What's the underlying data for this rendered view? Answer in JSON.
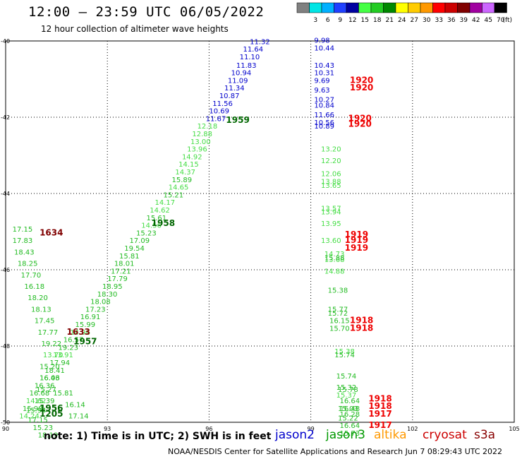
{
  "header": {
    "title": "12:00 — 23:59 UTC 06/05/2022",
    "subtitle": "12 hour collection of altimeter wave heights"
  },
  "colorbar": {
    "unit": "(ft)",
    "bins": [
      {
        "label": "",
        "color": "#808080"
      },
      {
        "label": "3",
        "color": "#00e5e5"
      },
      {
        "label": "6",
        "color": "#00b0ff"
      },
      {
        "label": "9",
        "color": "#2040ff"
      },
      {
        "label": "12",
        "color": "#0000a0"
      },
      {
        "label": "15",
        "color": "#44ff44"
      },
      {
        "label": "18",
        "color": "#22cc22"
      },
      {
        "label": "21",
        "color": "#008800"
      },
      {
        "label": "24",
        "color": "#ffff00"
      },
      {
        "label": "27",
        "color": "#ffcc00"
      },
      {
        "label": "30",
        "color": "#ff9900"
      },
      {
        "label": "33",
        "color": "#ff0000"
      },
      {
        "label": "36",
        "color": "#cc0000"
      },
      {
        "label": "39",
        "color": "#800000"
      },
      {
        "label": "42",
        "color": "#a000a0"
      },
      {
        "label": "45",
        "color": "#cc66ff"
      },
      {
        "label": "70",
        "color": "#000000"
      }
    ]
  },
  "footer": {
    "note": "note:  1) Time is in UTC; 2) SWH is in feet",
    "credit": "NOAA/NESDIS Center for Satellite Applications and Research    Jun  7 08:29:43 UTC 2022",
    "satellites": [
      {
        "name": "jason2",
        "color": "#0000cc"
      },
      {
        "name": "jason3",
        "color": "#009900"
      },
      {
        "name": "altika",
        "color": "#ff9900"
      },
      {
        "name": "cryosat",
        "color": "#cc0000"
      },
      {
        "name": "s3a",
        "color": "#880000"
      }
    ]
  },
  "chart_data": {
    "type": "scatter",
    "xlabel": "",
    "ylabel": "",
    "xlim": [
      90,
      105
    ],
    "ylim": [
      -50,
      -40
    ],
    "x_ticks": [
      90,
      93,
      96,
      99,
      102,
      105
    ],
    "y_ticks": [
      -40,
      -42,
      -44,
      -46,
      -48,
      -50
    ],
    "grid": true,
    "labels": [
      {
        "x": 97.2,
        "y": -40.08,
        "text": "11.32",
        "color": "#0000cc"
      },
      {
        "x": 97.0,
        "y": -40.28,
        "text": "11.64",
        "color": "#0000cc"
      },
      {
        "x": 96.9,
        "y": -40.48,
        "text": "11.10",
        "color": "#0000cc"
      },
      {
        "x": 96.8,
        "y": -40.7,
        "text": "11.83",
        "color": "#0000cc"
      },
      {
        "x": 96.65,
        "y": -40.9,
        "text": "10.94",
        "color": "#0000cc"
      },
      {
        "x": 96.55,
        "y": -41.1,
        "text": "11.09",
        "color": "#0000cc"
      },
      {
        "x": 96.45,
        "y": -41.3,
        "text": "11.34",
        "color": "#0000cc"
      },
      {
        "x": 96.3,
        "y": -41.5,
        "text": "10.87",
        "color": "#0000cc"
      },
      {
        "x": 96.1,
        "y": -41.7,
        "text": "11.56",
        "color": "#0000cc"
      },
      {
        "x": 96.0,
        "y": -41.9,
        "text": "10.69",
        "color": "#0000cc"
      },
      {
        "x": 95.9,
        "y": -42.1,
        "text": "11.67",
        "color": "#0000cc"
      },
      {
        "x": 95.65,
        "y": -42.3,
        "text": "12.18",
        "color": "#44dd44"
      },
      {
        "x": 95.5,
        "y": -42.5,
        "text": "12.88",
        "color": "#44dd44"
      },
      {
        "x": 95.45,
        "y": -42.7,
        "text": "13.00",
        "color": "#44dd44"
      },
      {
        "x": 95.35,
        "y": -42.9,
        "text": "13.96",
        "color": "#44dd44"
      },
      {
        "x": 95.2,
        "y": -43.1,
        "text": "14.92",
        "color": "#44dd44"
      },
      {
        "x": 95.1,
        "y": -43.3,
        "text": "14.15",
        "color": "#44dd44"
      },
      {
        "x": 95.0,
        "y": -43.5,
        "text": "14.37",
        "color": "#44dd44"
      },
      {
        "x": 94.9,
        "y": -43.7,
        "text": "15.89",
        "color": "#22bb22"
      },
      {
        "x": 94.8,
        "y": -43.9,
        "text": "14.65",
        "color": "#44dd44"
      },
      {
        "x": 94.65,
        "y": -44.1,
        "text": "15.21",
        "color": "#22bb22"
      },
      {
        "x": 94.4,
        "y": -44.3,
        "text": "14.17",
        "color": "#44dd44"
      },
      {
        "x": 94.25,
        "y": -44.5,
        "text": "14.62",
        "color": "#44dd44"
      },
      {
        "x": 94.15,
        "y": -44.7,
        "text": "15.61",
        "color": "#22bb22"
      },
      {
        "x": 94.0,
        "y": -44.9,
        "text": "14.56",
        "color": "#44dd44"
      },
      {
        "x": 93.85,
        "y": -45.1,
        "text": "15.23",
        "color": "#22bb22"
      },
      {
        "x": 93.65,
        "y": -45.3,
        "text": "17.09",
        "color": "#22bb22"
      },
      {
        "x": 93.5,
        "y": -45.5,
        "text": "19.54",
        "color": "#22bb22"
      },
      {
        "x": 93.35,
        "y": -45.7,
        "text": "15.81",
        "color": "#22bb22"
      },
      {
        "x": 93.2,
        "y": -45.9,
        "text": "18.01",
        "color": "#22bb22"
      },
      {
        "x": 93.1,
        "y": -46.1,
        "text": "17.21",
        "color": "#22bb22"
      },
      {
        "x": 93.0,
        "y": -46.3,
        "text": "17.79",
        "color": "#22bb22"
      },
      {
        "x": 92.85,
        "y": -46.5,
        "text": "18.95",
        "color": "#22bb22"
      },
      {
        "x": 92.7,
        "y": -46.7,
        "text": "18.30",
        "color": "#22bb22"
      },
      {
        "x": 92.5,
        "y": -46.9,
        "text": "18.08",
        "color": "#22bb22"
      },
      {
        "x": 92.35,
        "y": -47.1,
        "text": "17.23",
        "color": "#22bb22"
      },
      {
        "x": 92.2,
        "y": -47.3,
        "text": "16.91",
        "color": "#22bb22"
      },
      {
        "x": 92.05,
        "y": -47.5,
        "text": "15.99",
        "color": "#22bb22"
      },
      {
        "x": 91.9,
        "y": -47.7,
        "text": "14.96",
        "color": "#44dd44"
      },
      {
        "x": 91.7,
        "y": -47.9,
        "text": "16.57",
        "color": "#22bb22"
      },
      {
        "x": 91.55,
        "y": -48.1,
        "text": "19.23",
        "color": "#22bb22"
      },
      {
        "x": 91.4,
        "y": -48.3,
        "text": "13.91",
        "color": "#44dd44"
      },
      {
        "x": 91.3,
        "y": -48.5,
        "text": "17.94",
        "color": "#22bb22"
      },
      {
        "x": 91.15,
        "y": -48.7,
        "text": "18.41",
        "color": "#22bb22"
      },
      {
        "x": 91.0,
        "y": -48.9,
        "text": "16.03",
        "color": "#22bb22"
      },
      {
        "x": 90.85,
        "y": -49.1,
        "text": "16.36",
        "color": "#22bb22"
      },
      {
        "x": 90.7,
        "y": -49.3,
        "text": "16.68",
        "color": "#22bb22"
      },
      {
        "x": 90.6,
        "y": -49.5,
        "text": "14.62",
        "color": "#44dd44"
      },
      {
        "x": 90.5,
        "y": -49.7,
        "text": "15.98",
        "color": "#22bb22"
      },
      {
        "x": 90.4,
        "y": -49.9,
        "text": "14.24",
        "color": "#44dd44"
      },
      {
        "x": 90.2,
        "y": -45.0,
        "text": "17.15",
        "color": "#22bb22"
      },
      {
        "x": 90.2,
        "y": -45.3,
        "text": "17.83",
        "color": "#22bb22"
      },
      {
        "x": 90.25,
        "y": -45.6,
        "text": "18.43",
        "color": "#22bb22"
      },
      {
        "x": 90.35,
        "y": -45.9,
        "text": "18.25",
        "color": "#22bb22"
      },
      {
        "x": 90.45,
        "y": -46.2,
        "text": "17.70",
        "color": "#22bb22"
      },
      {
        "x": 90.55,
        "y": -46.5,
        "text": "16.18",
        "color": "#22bb22"
      },
      {
        "x": 90.65,
        "y": -46.8,
        "text": "18.20",
        "color": "#22bb22"
      },
      {
        "x": 90.75,
        "y": -47.1,
        "text": "18.13",
        "color": "#22bb22"
      },
      {
        "x": 90.85,
        "y": -47.4,
        "text": "17.45",
        "color": "#22bb22"
      },
      {
        "x": 90.95,
        "y": -47.7,
        "text": "17.77",
        "color": "#22bb22"
      },
      {
        "x": 91.05,
        "y": -48.0,
        "text": "19.22",
        "color": "#22bb22"
      },
      {
        "x": 91.1,
        "y": -48.3,
        "text": "13.70",
        "color": "#44dd44"
      },
      {
        "x": 91.0,
        "y": -48.6,
        "text": "15.20",
        "color": "#22bb22"
      },
      {
        "x": 91.0,
        "y": -48.9,
        "text": "16.46",
        "color": "#22bb22"
      },
      {
        "x": 90.9,
        "y": -49.2,
        "text": "15.27",
        "color": "#22bb22"
      },
      {
        "x": 90.85,
        "y": -49.5,
        "text": "15.39",
        "color": "#22bb22"
      },
      {
        "x": 90.6,
        "y": -49.75,
        "text": "15.94",
        "color": "#22bb22"
      },
      {
        "x": 90.65,
        "y": -50.0,
        "text": "17.15",
        "color": "#22bb22"
      },
      {
        "x": 90.8,
        "y": -50.2,
        "text": "15.23",
        "color": "#22bb22"
      },
      {
        "x": 90.95,
        "y": -50.4,
        "text": "18.19",
        "color": "#22bb22"
      },
      {
        "x": 91.4,
        "y": -49.3,
        "text": "15.81",
        "color": "#22bb22"
      },
      {
        "x": 91.75,
        "y": -49.6,
        "text": "16.14",
        "color": "#22bb22"
      },
      {
        "x": 91.85,
        "y": -49.9,
        "text": "17.14",
        "color": "#22bb22"
      },
      {
        "x": 99.1,
        "y": -40.05,
        "text": "9.98",
        "color": "#0000cc"
      },
      {
        "x": 99.1,
        "y": -40.25,
        "text": "10.44",
        "color": "#0000cc"
      },
      {
        "x": 99.1,
        "y": -40.7,
        "text": "10.43",
        "color": "#0000cc"
      },
      {
        "x": 99.1,
        "y": -40.9,
        "text": "10.31",
        "color": "#0000cc"
      },
      {
        "x": 99.1,
        "y": -41.1,
        "text": "9.69",
        "color": "#0000cc"
      },
      {
        "x": 99.1,
        "y": -41.35,
        "text": "9.63",
        "color": "#0000cc"
      },
      {
        "x": 99.1,
        "y": -41.6,
        "text": "10.27",
        "color": "#0000cc"
      },
      {
        "x": 99.1,
        "y": -41.75,
        "text": "10.84",
        "color": "#0000cc"
      },
      {
        "x": 99.1,
        "y": -42.0,
        "text": "11.66",
        "color": "#0000cc"
      },
      {
        "x": 99.1,
        "y": -42.2,
        "text": "10.56",
        "color": "#0000cc"
      },
      {
        "x": 99.1,
        "y": -42.3,
        "text": "10.89",
        "color": "#0000cc"
      },
      {
        "x": 99.3,
        "y": -42.9,
        "text": "13.20",
        "color": "#44dd44"
      },
      {
        "x": 99.3,
        "y": -43.2,
        "text": "12.20",
        "color": "#44dd44"
      },
      {
        "x": 99.3,
        "y": -43.55,
        "text": "12.06",
        "color": "#44dd44"
      },
      {
        "x": 99.3,
        "y": -43.75,
        "text": "13.88",
        "color": "#44dd44"
      },
      {
        "x": 99.3,
        "y": -43.85,
        "text": "13.65",
        "color": "#44dd44"
      },
      {
        "x": 99.3,
        "y": -44.45,
        "text": "13.57",
        "color": "#44dd44"
      },
      {
        "x": 99.3,
        "y": -44.55,
        "text": "13.94",
        "color": "#44dd44"
      },
      {
        "x": 99.3,
        "y": -44.85,
        "text": "13.95",
        "color": "#44dd44"
      },
      {
        "x": 99.3,
        "y": -45.3,
        "text": "13.60",
        "color": "#44dd44"
      },
      {
        "x": 99.4,
        "y": -45.65,
        "text": "14.73",
        "color": "#44dd44"
      },
      {
        "x": 99.4,
        "y": -45.8,
        "text": "13.68",
        "color": "#44dd44"
      },
      {
        "x": 99.4,
        "y": -45.75,
        "text": "15.88",
        "color": "#22bb22"
      },
      {
        "x": 99.4,
        "y": -46.1,
        "text": "14.88",
        "color": "#44dd44"
      },
      {
        "x": 99.5,
        "y": -46.6,
        "text": "15.38",
        "color": "#22bb22"
      },
      {
        "x": 99.5,
        "y": -47.1,
        "text": "15.77",
        "color": "#22bb22"
      },
      {
        "x": 99.5,
        "y": -47.2,
        "text": "15.72",
        "color": "#22bb22"
      },
      {
        "x": 99.55,
        "y": -47.4,
        "text": "16.15",
        "color": "#22bb22"
      },
      {
        "x": 99.55,
        "y": -47.6,
        "text": "15.70",
        "color": "#22bb22"
      },
      {
        "x": 99.7,
        "y": -48.2,
        "text": "15.38",
        "color": "#44dd44"
      },
      {
        "x": 99.7,
        "y": -48.3,
        "text": "15.74",
        "color": "#22bb22"
      },
      {
        "x": 99.75,
        "y": -48.85,
        "text": "15.74",
        "color": "#22bb22"
      },
      {
        "x": 99.75,
        "y": -49.15,
        "text": "15.32",
        "color": "#22bb22"
      },
      {
        "x": 99.75,
        "y": -49.35,
        "text": "15.37",
        "color": "#44dd44"
      },
      {
        "x": 99.8,
        "y": -49.7,
        "text": "15.03",
        "color": "#22bb22"
      },
      {
        "x": 99.8,
        "y": -49.95,
        "text": "15.22",
        "color": "#22bb22"
      },
      {
        "x": 99.85,
        "y": -50.35,
        "text": "15.73",
        "color": "#22bb22"
      }
    ],
    "time_labels": [
      {
        "x": 96.5,
        "y": -42.15,
        "text": "1959",
        "color": "#006600"
      },
      {
        "x": 94.3,
        "y": -44.85,
        "text": "1958",
        "color": "#006600"
      },
      {
        "x": 92.0,
        "y": -47.95,
        "text": "1957",
        "color": "#006600"
      },
      {
        "x": 91.0,
        "y": -49.7,
        "text": "1956",
        "color": "#006600"
      },
      {
        "x": 91.0,
        "y": -49.85,
        "text": "1205",
        "color": "#006600"
      },
      {
        "x": 91.0,
        "y": -45.1,
        "text": "1634",
        "color": "#800000"
      },
      {
        "x": 91.8,
        "y": -47.7,
        "text": "1633",
        "color": "#800000"
      },
      {
        "x": 100.15,
        "y": -41.1,
        "text": "1920",
        "color": "#ee0000"
      },
      {
        "x": 100.15,
        "y": -41.3,
        "text": "1920",
        "color": "#ee0000"
      },
      {
        "x": 100.1,
        "y": -42.1,
        "text": "1920",
        "color": "#ee0000"
      },
      {
        "x": 100.1,
        "y": -42.25,
        "text": "1920",
        "color": "#ee0000"
      },
      {
        "x": 100.0,
        "y": -45.15,
        "text": "1919",
        "color": "#ee0000"
      },
      {
        "x": 100.0,
        "y": -45.3,
        "text": "1919",
        "color": "#ee0000"
      },
      {
        "x": 100.0,
        "y": -45.5,
        "text": "1919",
        "color": "#ee0000"
      },
      {
        "x": 100.15,
        "y": -47.4,
        "text": "1918",
        "color": "#ee0000"
      },
      {
        "x": 100.15,
        "y": -47.6,
        "text": "1918",
        "color": "#ee0000"
      },
      {
        "x": 100.7,
        "y": -49.45,
        "text": "1918",
        "color": "#ee0000"
      },
      {
        "x": 100.7,
        "y": -49.65,
        "text": "1918",
        "color": "#ee0000"
      },
      {
        "x": 100.7,
        "y": -49.85,
        "text": "1917",
        "color": "#ee0000"
      },
      {
        "x": 100.7,
        "y": -50.15,
        "text": "1917",
        "color": "#ee0000"
      }
    ],
    "extra_labels": [
      {
        "x": 99.85,
        "y": -49.5,
        "text": "16.64",
        "color": "#22bb22"
      },
      {
        "x": 99.85,
        "y": -49.7,
        "text": "16.48",
        "color": "#22bb22"
      },
      {
        "x": 99.85,
        "y": -49.85,
        "text": "16.28",
        "color": "#22bb22"
      },
      {
        "x": 99.85,
        "y": -50.15,
        "text": "16.64",
        "color": "#22bb22"
      },
      {
        "x": 99.8,
        "y": -49.2,
        "text": "15.78",
        "color": "#22bb22"
      }
    ]
  }
}
